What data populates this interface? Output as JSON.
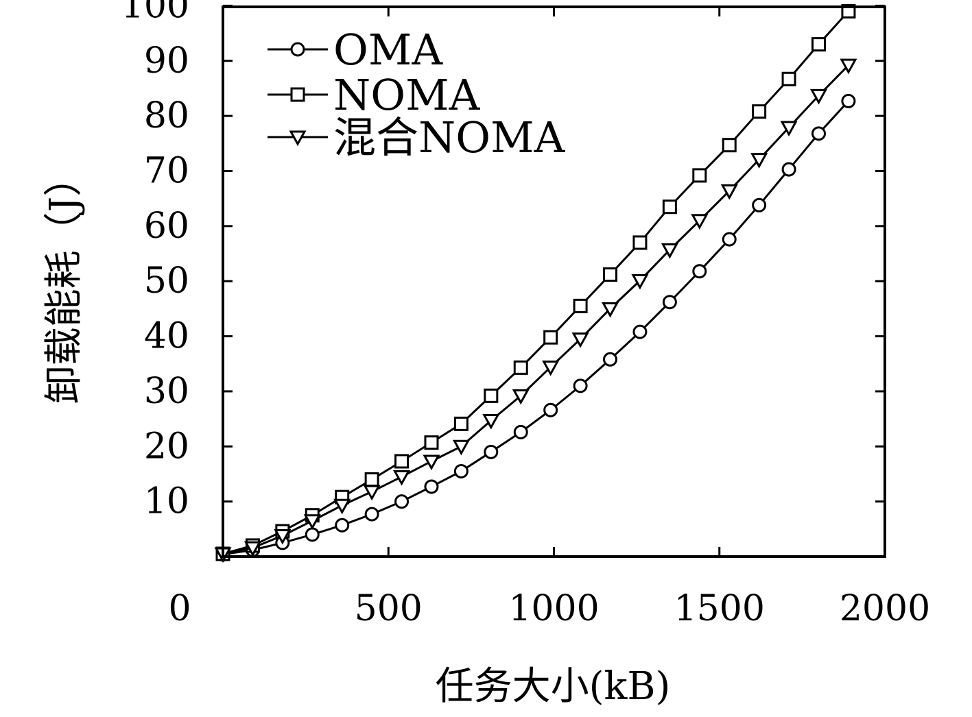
{
  "chart_data": {
    "type": "line",
    "title": "",
    "xlabel": "任务大小(kB)",
    "ylabel": "卸载能耗（J）",
    "xlim": [
      0,
      2000
    ],
    "ylim": [
      0,
      100
    ],
    "xticks": [
      0,
      500,
      1000,
      1500,
      2000
    ],
    "yticks": [
      10,
      20,
      30,
      40,
      50,
      60,
      70,
      80,
      90,
      100
    ],
    "xtick_labels": [
      "0",
      "500",
      "1000",
      "1500",
      "2000"
    ],
    "ytick_labels": [
      "10",
      "20",
      "30",
      "40",
      "50",
      "60",
      "70",
      "80",
      "90",
      "100"
    ],
    "legend_position": "top-left",
    "grid": false,
    "x": [
      0,
      90,
      180,
      270,
      360,
      450,
      540,
      630,
      720,
      810,
      900,
      990,
      1080,
      1170,
      1260,
      1350,
      1440,
      1530,
      1620,
      1710,
      1800,
      1890
    ],
    "series": [
      {
        "name": "OMA",
        "marker": "circle",
        "values": [
          0.4,
          1.2,
          2.5,
          4.0,
          5.7,
          7.7,
          10.0,
          12.7,
          15.5,
          19.0,
          22.6,
          26.6,
          31.0,
          35.8,
          40.8,
          46.2,
          51.8,
          57.6,
          63.8,
          70.3,
          76.8,
          82.7
        ]
      },
      {
        "name": "NOMA",
        "marker": "square",
        "values": [
          0.5,
          2.0,
          4.6,
          7.5,
          10.8,
          14.0,
          17.3,
          20.7,
          24.1,
          29.2,
          34.3,
          39.8,
          45.5,
          51.2,
          57.0,
          63.5,
          69.2,
          74.7,
          80.8,
          86.7,
          93.0,
          99.0
        ]
      },
      {
        "name": "混合NOMA",
        "marker": "triangle-down",
        "values": [
          0.5,
          1.6,
          3.8,
          6.5,
          9.3,
          11.8,
          14.5,
          17.3,
          20.0,
          24.7,
          29.2,
          34.4,
          39.5,
          45.0,
          50.1,
          55.7,
          61.0,
          66.4,
          72.1,
          77.9,
          83.7,
          89.2
        ]
      }
    ]
  }
}
